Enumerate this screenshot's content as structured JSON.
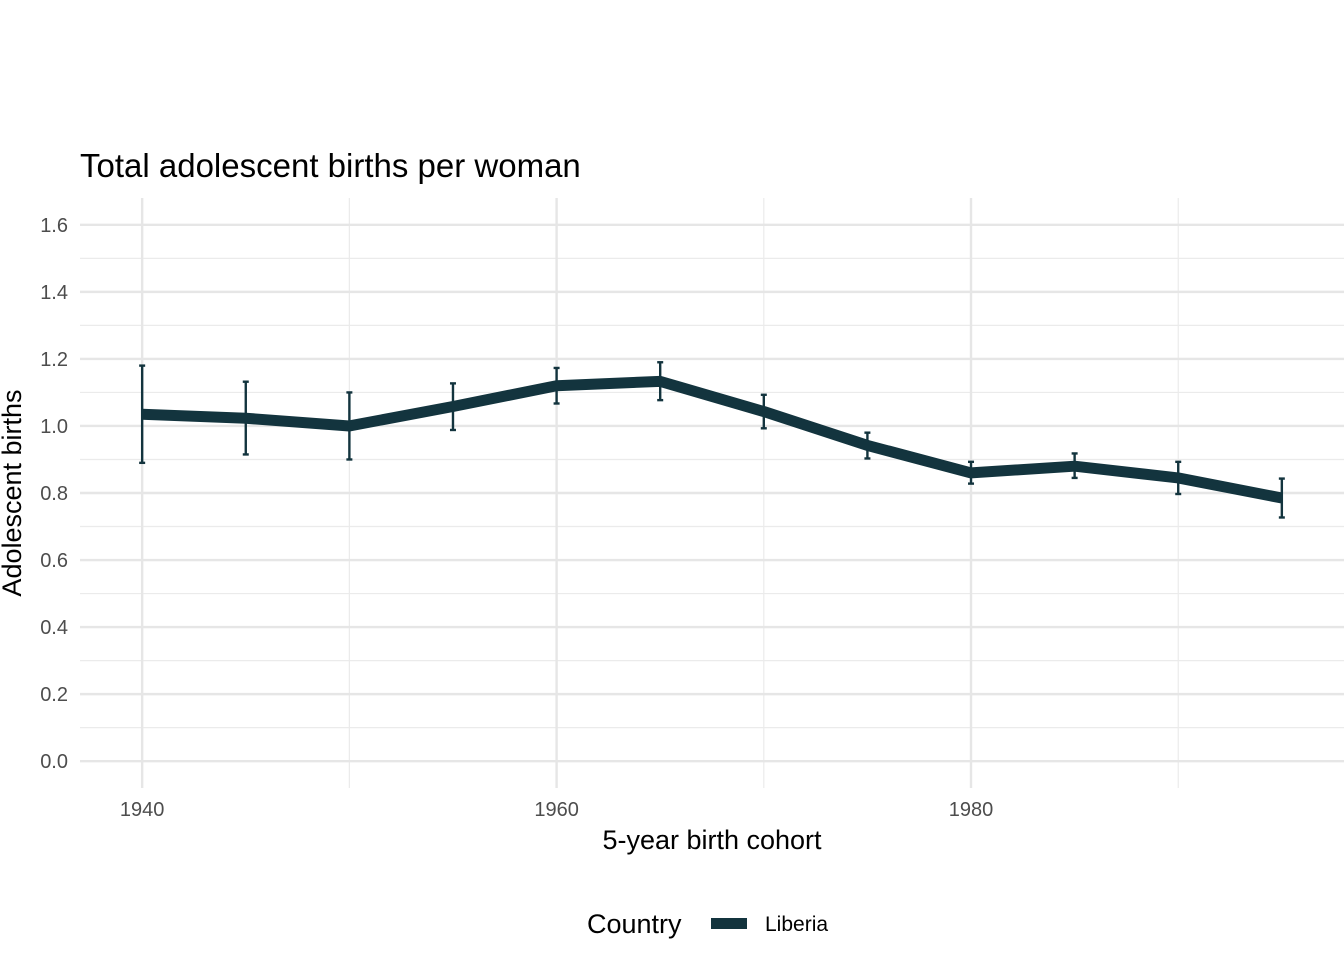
{
  "chart_data": {
    "type": "line",
    "title": "Total adolescent births per woman",
    "xlabel": "5-year birth cohort",
    "ylabel": "Adolescent births",
    "xlim": [
      1937,
      1998
    ],
    "ylim": [
      -0.08,
      1.68
    ],
    "x_ticks": [
      1940,
      1960,
      1980
    ],
    "x_tick_labels": [
      "1940",
      "1960",
      "1980"
    ],
    "x_minor_ticks": [
      1950,
      1970,
      1990
    ],
    "y_ticks": [
      0.0,
      0.2,
      0.4,
      0.6,
      0.8,
      1.0,
      1.2,
      1.4,
      1.6
    ],
    "y_tick_labels": [
      "0.0",
      "0.2",
      "0.4",
      "0.6",
      "0.8",
      "1.0",
      "1.2",
      "1.4",
      "1.6"
    ],
    "y_minor_ticks": [
      0.1,
      0.3,
      0.5,
      0.7,
      0.9,
      1.1,
      1.3,
      1.5
    ],
    "grid": true,
    "legend": {
      "title": "Country",
      "position": "bottom"
    },
    "series": [
      {
        "name": "Liberia",
        "color": "#13343e",
        "x": [
          1940,
          1945,
          1950,
          1955,
          1960,
          1965,
          1970,
          1975,
          1980,
          1985,
          1990,
          1995
        ],
        "values": [
          1.035,
          1.023,
          1.0,
          1.058,
          1.12,
          1.133,
          1.043,
          0.942,
          0.86,
          0.88,
          0.845,
          0.785
        ],
        "lower": [
          0.89,
          0.915,
          0.9,
          0.988,
          1.067,
          1.077,
          0.993,
          0.903,
          0.828,
          0.845,
          0.797,
          0.727
        ],
        "upper": [
          1.18,
          1.132,
          1.1,
          1.127,
          1.173,
          1.19,
          1.093,
          0.98,
          0.893,
          0.918,
          0.893,
          0.843
        ]
      }
    ]
  }
}
